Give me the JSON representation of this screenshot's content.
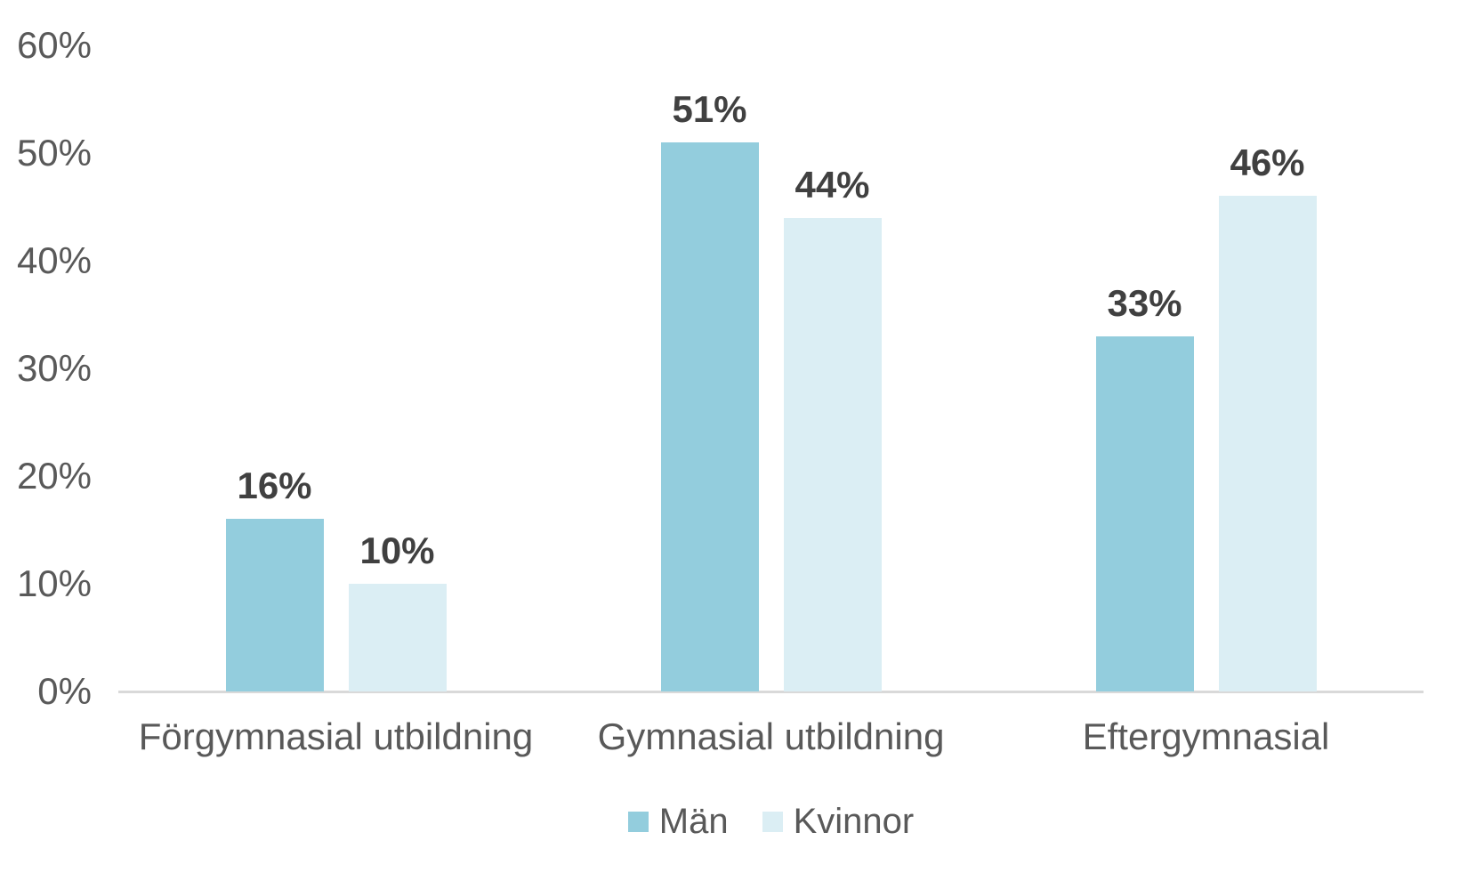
{
  "chart_data": {
    "type": "bar",
    "title": "",
    "categories": [
      "Förgymnasial utbildning",
      "Gymnasial utbildning",
      "Eftergymnasial"
    ],
    "series": [
      {
        "name": "Män",
        "color": "#93CDDD",
        "values": [
          16,
          51,
          33
        ],
        "labels": [
          "16%",
          "51%",
          "33%"
        ]
      },
      {
        "name": "Kvinnor",
        "color": "#DBEEF4",
        "values": [
          10,
          44,
          46
        ],
        "labels": [
          "10%",
          "44%",
          "46%"
        ]
      }
    ],
    "ylim": [
      0,
      60
    ],
    "yticks": [
      {
        "value": 60,
        "label": "60%"
      },
      {
        "value": 50,
        "label": "50%"
      },
      {
        "value": 40,
        "label": "40%"
      },
      {
        "value": 30,
        "label": "30%"
      },
      {
        "value": 20,
        "label": "20%"
      },
      {
        "value": 10,
        "label": "10%"
      },
      {
        "value": 0,
        "label": "0%"
      }
    ],
    "xlabel": "",
    "ylabel": "",
    "grid": false,
    "legend_position": "bottom",
    "colors": {
      "axis_line": "#d9d9d9",
      "tick_label": "#595959",
      "category_label": "#595959",
      "data_label": "#404040",
      "background": "#ffffff"
    }
  }
}
